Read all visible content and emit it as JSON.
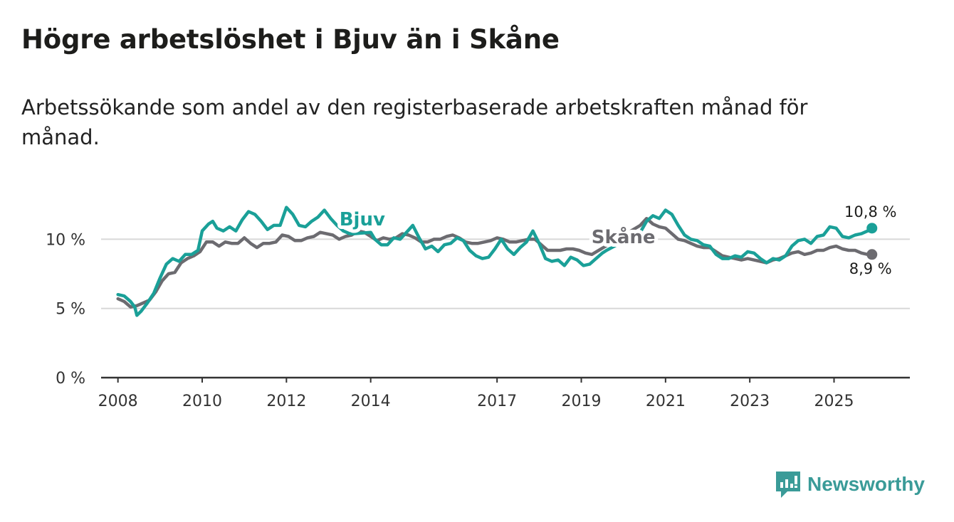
{
  "title": "Högre arbetslöshet i Bjuv än i Skåne",
  "subtitle": "Arbetssökande som andel av den registerbaserade arbetskraften månad för månad.",
  "brand": {
    "name": "Newsworthy",
    "icon": "newsworthy-logo-icon",
    "color": "#3a9b98"
  },
  "chart_data": {
    "type": "line",
    "title": "Högre arbetslöshet i Bjuv än i Skåne",
    "xlabel": "",
    "ylabel": "",
    "ylim": [
      0,
      13
    ],
    "xlim": [
      2007.6,
      2026.8
    ],
    "yticks": [
      {
        "value": 0,
        "label": "0 %"
      },
      {
        "value": 5,
        "label": "5 %"
      },
      {
        "value": 10,
        "label": "10 %"
      }
    ],
    "xticks": [
      {
        "value": 2008,
        "label": "2008"
      },
      {
        "value": 2010,
        "label": "2010"
      },
      {
        "value": 2012,
        "label": "2012"
      },
      {
        "value": 2014,
        "label": "2014"
      },
      {
        "value": 2017,
        "label": "2017"
      },
      {
        "value": 2019,
        "label": "2019"
      },
      {
        "value": 2021,
        "label": "2021"
      },
      {
        "value": 2023,
        "label": "2023"
      },
      {
        "value": 2025,
        "label": "2025"
      }
    ],
    "series": [
      {
        "name": "Bjuv",
        "color": "#1aa098",
        "label_at": [
          2013.8,
          11.0
        ],
        "end_label": "10,8 %",
        "points": [
          [
            2008.0,
            6.0
          ],
          [
            2008.15,
            5.9
          ],
          [
            2008.3,
            5.5
          ],
          [
            2008.4,
            5.1
          ],
          [
            2008.45,
            4.5
          ],
          [
            2008.55,
            4.8
          ],
          [
            2008.7,
            5.4
          ],
          [
            2008.85,
            6.1
          ],
          [
            2009.0,
            7.2
          ],
          [
            2009.15,
            8.2
          ],
          [
            2009.3,
            8.6
          ],
          [
            2009.45,
            8.4
          ],
          [
            2009.6,
            8.9
          ],
          [
            2009.75,
            8.9
          ],
          [
            2009.9,
            9.2
          ],
          [
            2010.0,
            10.6
          ],
          [
            2010.15,
            11.1
          ],
          [
            2010.25,
            11.3
          ],
          [
            2010.35,
            10.8
          ],
          [
            2010.5,
            10.6
          ],
          [
            2010.65,
            10.9
          ],
          [
            2010.8,
            10.6
          ],
          [
            2010.95,
            11.4
          ],
          [
            2011.1,
            12.0
          ],
          [
            2011.25,
            11.8
          ],
          [
            2011.4,
            11.3
          ],
          [
            2011.55,
            10.7
          ],
          [
            2011.7,
            11.0
          ],
          [
            2011.85,
            11.0
          ],
          [
            2012.0,
            12.3
          ],
          [
            2012.15,
            11.8
          ],
          [
            2012.3,
            11.0
          ],
          [
            2012.45,
            10.9
          ],
          [
            2012.6,
            11.3
          ],
          [
            2012.75,
            11.6
          ],
          [
            2012.9,
            12.1
          ],
          [
            2013.05,
            11.5
          ],
          [
            2013.2,
            11.0
          ],
          [
            2013.35,
            10.6
          ],
          [
            2013.5,
            10.4
          ],
          [
            2013.6,
            10.4
          ],
          [
            2014.0,
            10.5
          ],
          [
            2014.1,
            10.0
          ],
          [
            2014.25,
            9.6
          ],
          [
            2014.4,
            9.6
          ],
          [
            2014.55,
            10.1
          ],
          [
            2014.7,
            10.0
          ],
          [
            2014.85,
            10.5
          ],
          [
            2015.0,
            11.0
          ],
          [
            2015.15,
            10.1
          ],
          [
            2015.3,
            9.3
          ],
          [
            2015.45,
            9.5
          ],
          [
            2015.6,
            9.1
          ],
          [
            2015.75,
            9.6
          ],
          [
            2015.9,
            9.7
          ],
          [
            2016.05,
            10.1
          ],
          [
            2016.2,
            9.9
          ],
          [
            2016.35,
            9.2
          ],
          [
            2016.5,
            8.8
          ],
          [
            2016.65,
            8.6
          ],
          [
            2016.8,
            8.7
          ],
          [
            2016.95,
            9.3
          ],
          [
            2017.1,
            10.0
          ],
          [
            2017.25,
            9.3
          ],
          [
            2017.4,
            8.9
          ],
          [
            2017.55,
            9.4
          ],
          [
            2017.7,
            9.8
          ],
          [
            2017.85,
            10.6
          ],
          [
            2018.0,
            9.7
          ],
          [
            2018.15,
            8.6
          ],
          [
            2018.3,
            8.4
          ],
          [
            2018.45,
            8.5
          ],
          [
            2018.6,
            8.1
          ],
          [
            2018.75,
            8.7
          ],
          [
            2018.9,
            8.5
          ],
          [
            2019.05,
            8.1
          ],
          [
            2019.2,
            8.2
          ],
          [
            2019.35,
            8.6
          ],
          [
            2019.5,
            9.0
          ],
          [
            2019.6,
            9.2
          ],
          [
            2020.4,
            10.5
          ],
          [
            2020.55,
            11.3
          ],
          [
            2020.7,
            11.7
          ],
          [
            2020.85,
            11.5
          ],
          [
            2021.0,
            12.1
          ],
          [
            2021.15,
            11.8
          ],
          [
            2021.3,
            11.0
          ],
          [
            2021.45,
            10.3
          ],
          [
            2021.6,
            10.0
          ],
          [
            2021.75,
            9.9
          ],
          [
            2021.9,
            9.6
          ],
          [
            2022.05,
            9.5
          ],
          [
            2022.2,
            8.9
          ],
          [
            2022.35,
            8.6
          ],
          [
            2022.5,
            8.6
          ],
          [
            2022.65,
            8.8
          ],
          [
            2022.8,
            8.7
          ],
          [
            2022.95,
            9.1
          ],
          [
            2023.1,
            9.0
          ],
          [
            2023.25,
            8.6
          ],
          [
            2023.4,
            8.3
          ],
          [
            2023.55,
            8.6
          ],
          [
            2023.7,
            8.5
          ],
          [
            2023.85,
            8.8
          ],
          [
            2024.0,
            9.5
          ],
          [
            2024.15,
            9.9
          ],
          [
            2024.3,
            10.0
          ],
          [
            2024.45,
            9.7
          ],
          [
            2024.6,
            10.2
          ],
          [
            2024.75,
            10.3
          ],
          [
            2024.9,
            10.9
          ],
          [
            2025.05,
            10.8
          ],
          [
            2025.2,
            10.2
          ],
          [
            2025.35,
            10.1
          ],
          [
            2025.5,
            10.3
          ],
          [
            2025.65,
            10.4
          ],
          [
            2025.8,
            10.6
          ],
          [
            2025.9,
            10.8
          ]
        ]
      },
      {
        "name": "Skåne",
        "color": "#6c6b70",
        "label_at": [
          2020.0,
          9.7
        ],
        "end_label": "8,9 %",
        "points": [
          [
            2008.0,
            5.7
          ],
          [
            2008.15,
            5.5
          ],
          [
            2008.3,
            5.1
          ],
          [
            2008.45,
            5.2
          ],
          [
            2008.6,
            5.4
          ],
          [
            2008.75,
            5.6
          ],
          [
            2008.9,
            6.2
          ],
          [
            2009.05,
            7.0
          ],
          [
            2009.2,
            7.5
          ],
          [
            2009.35,
            7.6
          ],
          [
            2009.5,
            8.3
          ],
          [
            2009.65,
            8.6
          ],
          [
            2009.8,
            8.8
          ],
          [
            2009.95,
            9.1
          ],
          [
            2010.1,
            9.8
          ],
          [
            2010.25,
            9.8
          ],
          [
            2010.4,
            9.5
          ],
          [
            2010.55,
            9.8
          ],
          [
            2010.7,
            9.7
          ],
          [
            2010.85,
            9.7
          ],
          [
            2011.0,
            10.1
          ],
          [
            2011.15,
            9.7
          ],
          [
            2011.3,
            9.4
          ],
          [
            2011.45,
            9.7
          ],
          [
            2011.6,
            9.7
          ],
          [
            2011.75,
            9.8
          ],
          [
            2011.9,
            10.3
          ],
          [
            2012.05,
            10.2
          ],
          [
            2012.2,
            9.9
          ],
          [
            2012.35,
            9.9
          ],
          [
            2012.5,
            10.1
          ],
          [
            2012.65,
            10.2
          ],
          [
            2012.8,
            10.5
          ],
          [
            2012.95,
            10.4
          ],
          [
            2013.1,
            10.3
          ],
          [
            2013.25,
            10.0
          ],
          [
            2013.4,
            10.2
          ],
          [
            2013.55,
            10.3
          ],
          [
            2013.7,
            10.6
          ],
          [
            2013.85,
            10.5
          ],
          [
            2014.0,
            10.2
          ],
          [
            2014.15,
            9.9
          ],
          [
            2014.3,
            10.1
          ],
          [
            2014.45,
            10.0
          ],
          [
            2014.6,
            10.1
          ],
          [
            2014.75,
            10.4
          ],
          [
            2014.9,
            10.3
          ],
          [
            2015.05,
            10.1
          ],
          [
            2015.2,
            9.8
          ],
          [
            2015.35,
            9.8
          ],
          [
            2015.5,
            10.0
          ],
          [
            2015.65,
            10.0
          ],
          [
            2015.8,
            10.2
          ],
          [
            2015.95,
            10.3
          ],
          [
            2016.1,
            10.1
          ],
          [
            2016.25,
            9.8
          ],
          [
            2016.4,
            9.7
          ],
          [
            2016.55,
            9.7
          ],
          [
            2016.7,
            9.8
          ],
          [
            2016.85,
            9.9
          ],
          [
            2017.0,
            10.1
          ],
          [
            2017.15,
            10.0
          ],
          [
            2017.3,
            9.8
          ],
          [
            2017.45,
            9.8
          ],
          [
            2017.6,
            9.9
          ],
          [
            2017.75,
            10.0
          ],
          [
            2017.9,
            10.0
          ],
          [
            2018.05,
            9.6
          ],
          [
            2018.2,
            9.2
          ],
          [
            2018.35,
            9.2
          ],
          [
            2018.5,
            9.2
          ],
          [
            2018.65,
            9.3
          ],
          [
            2018.8,
            9.3
          ],
          [
            2018.95,
            9.2
          ],
          [
            2019.1,
            9.0
          ],
          [
            2019.25,
            8.9
          ],
          [
            2020.4,
            11.0
          ],
          [
            2020.55,
            11.5
          ],
          [
            2020.7,
            11.1
          ],
          [
            2020.85,
            10.9
          ],
          [
            2021.0,
            10.8
          ],
          [
            2021.15,
            10.4
          ],
          [
            2021.3,
            10.0
          ],
          [
            2021.45,
            9.9
          ],
          [
            2021.6,
            9.7
          ],
          [
            2021.75,
            9.5
          ],
          [
            2021.9,
            9.4
          ],
          [
            2022.05,
            9.4
          ],
          [
            2022.2,
            9.1
          ],
          [
            2022.35,
            8.8
          ],
          [
            2022.5,
            8.7
          ],
          [
            2022.65,
            8.6
          ],
          [
            2022.8,
            8.5
          ],
          [
            2022.95,
            8.6
          ],
          [
            2023.1,
            8.5
          ],
          [
            2023.25,
            8.4
          ],
          [
            2023.4,
            8.3
          ],
          [
            2023.55,
            8.5
          ],
          [
            2023.7,
            8.6
          ],
          [
            2023.85,
            8.8
          ],
          [
            2024.0,
            9.0
          ],
          [
            2024.15,
            9.1
          ],
          [
            2024.3,
            8.9
          ],
          [
            2024.45,
            9.0
          ],
          [
            2024.6,
            9.2
          ],
          [
            2024.75,
            9.2
          ],
          [
            2024.9,
            9.4
          ],
          [
            2025.05,
            9.5
          ],
          [
            2025.2,
            9.3
          ],
          [
            2025.35,
            9.2
          ],
          [
            2025.5,
            9.2
          ],
          [
            2025.65,
            9.0
          ],
          [
            2025.8,
            8.9
          ],
          [
            2025.9,
            8.9
          ]
        ]
      }
    ]
  }
}
